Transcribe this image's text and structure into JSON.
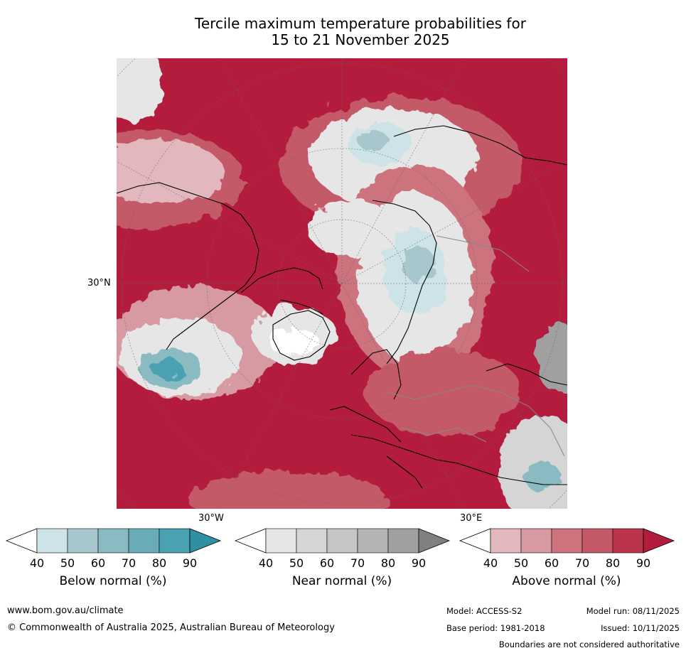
{
  "title": {
    "line1": "Tercile maximum temperature probabilities for",
    "line2": "15 to 21 November 2025"
  },
  "map": {
    "lat_label": "30°N",
    "lon_label_west": "30°W",
    "lon_label_east": "30°E"
  },
  "colorbars": [
    {
      "title": "Below normal (%)",
      "ticks": [
        "40",
        "50",
        "60",
        "70",
        "80",
        "90"
      ],
      "colors": [
        "#ffffff",
        "#cde3e8",
        "#a7c7cd",
        "#8abac2",
        "#6aabb8",
        "#4aa1b1",
        "#2f8fa3"
      ]
    },
    {
      "title": "Near normal (%)",
      "ticks": [
        "40",
        "50",
        "60",
        "70",
        "80",
        "90"
      ],
      "colors": [
        "#ffffff",
        "#e6e6e6",
        "#d5d5d5",
        "#c5c5c5",
        "#b4b4b4",
        "#a0a0a0",
        "#808080"
      ]
    },
    {
      "title": "Above normal (%)",
      "ticks": [
        "40",
        "50",
        "60",
        "70",
        "80",
        "90"
      ],
      "colors": [
        "#ffffff",
        "#e2b7bd",
        "#d89aa2",
        "#cc737e",
        "#c45a67",
        "#ba344b",
        "#b31c3c"
      ]
    }
  ],
  "footer": {
    "website": "www.bom.gov.au/climate",
    "copyright": "© Commonwealth of Australia 2025, Australian Bureau of Meteorology",
    "model": "Model: ACCESS-S2",
    "model_run": "Model run: 08/11/2025",
    "base_period": "Base period: 1981-2018",
    "issued": "Issued: 10/11/2025",
    "disclaimer": "Boundaries are not considered authoritative"
  }
}
